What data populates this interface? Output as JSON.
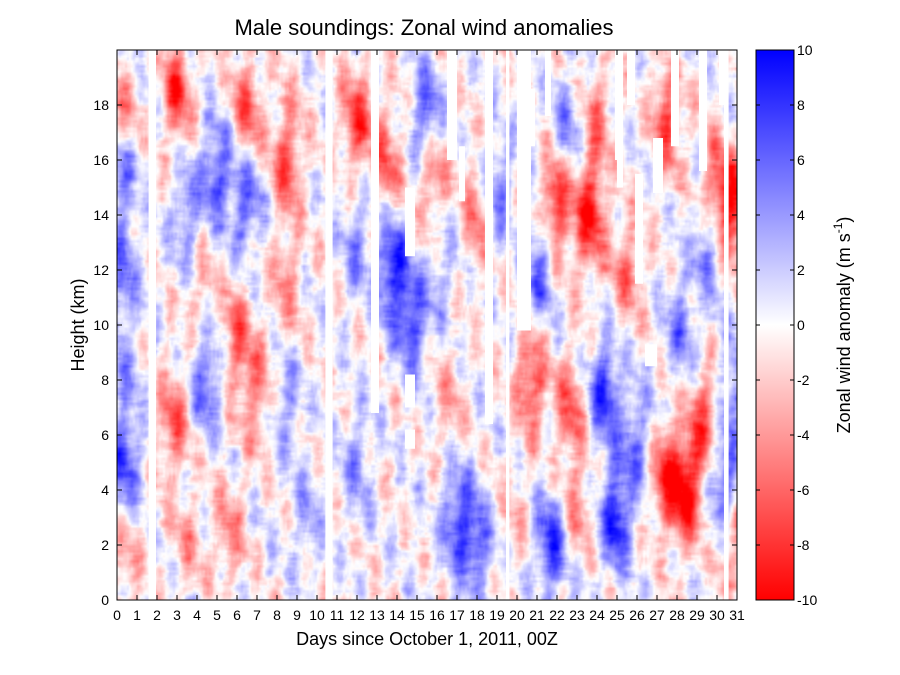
{
  "chart_data": {
    "type": "heatmap",
    "title": "Male soundings:  Zonal wind anomalies",
    "xlabel": "Days since October 1, 2011, 00Z",
    "ylabel": "Height (km)",
    "xlim": [
      0,
      31
    ],
    "ylim": [
      0,
      20
    ],
    "x_ticks": [
      0,
      1,
      2,
      3,
      4,
      5,
      6,
      7,
      8,
      9,
      10,
      11,
      12,
      13,
      14,
      15,
      16,
      17,
      18,
      19,
      20,
      21,
      22,
      23,
      24,
      25,
      26,
      27,
      28,
      29,
      30,
      31
    ],
    "y_ticks": [
      0,
      2,
      4,
      6,
      8,
      10,
      12,
      14,
      16,
      18
    ],
    "colorbar": {
      "label_main": "Zonal wind anomaly (m s",
      "label_sup": "-1",
      "label_end": ")",
      "range": [
        -10,
        10
      ],
      "ticks": [
        10,
        8,
        6,
        4,
        2,
        0,
        -2,
        -4,
        -6,
        -8,
        -10
      ],
      "colormap": [
        "#ff0000",
        "#ffffff",
        "#0000ff"
      ]
    },
    "gaps_full_column_days": [
      [
        1.58,
        1.95
      ],
      [
        10.42,
        10.78
      ],
      [
        19.45,
        19.62
      ],
      [
        30.35,
        30.58
      ]
    ],
    "gaps_partial": [
      {
        "x": [
          12.7,
          13.1
        ],
        "y": [
          6.8,
          20
        ]
      },
      {
        "x": [
          14.4,
          14.9
        ],
        "y": [
          7.0,
          8.2
        ]
      },
      {
        "x": [
          14.4,
          14.9
        ],
        "y": [
          5.5,
          6.2
        ]
      },
      {
        "x": [
          14.4,
          14.9
        ],
        "y": [
          12.5,
          15
        ]
      },
      {
        "x": [
          16.5,
          17.0
        ],
        "y": [
          16.0,
          20
        ]
      },
      {
        "x": [
          17.1,
          17.4
        ],
        "y": [
          14.5,
          16.5
        ]
      },
      {
        "x": [
          18.4,
          18.8
        ],
        "y": [
          6.4,
          20
        ]
      },
      {
        "x": [
          20.0,
          20.7
        ],
        "y": [
          9.8,
          20
        ]
      },
      {
        "x": [
          20.7,
          20.9
        ],
        "y": [
          16.5,
          18.6
        ]
      },
      {
        "x": [
          21.4,
          21.7
        ],
        "y": [
          17.6,
          20
        ]
      },
      {
        "x": [
          24.9,
          25.3
        ],
        "y": [
          16.0,
          20
        ]
      },
      {
        "x": [
          25.5,
          25.9
        ],
        "y": [
          18.0,
          20
        ]
      },
      {
        "x": [
          25.0,
          25.3
        ],
        "y": [
          15.0,
          16.0
        ]
      },
      {
        "x": [
          26.4,
          27.0
        ],
        "y": [
          8.5,
          9.3
        ]
      },
      {
        "x": [
          26.8,
          27.3
        ],
        "y": [
          14.8,
          16.8
        ]
      },
      {
        "x": [
          27.7,
          28.1
        ],
        "y": [
          16.5,
          20
        ]
      },
      {
        "x": [
          29.1,
          29.5
        ],
        "y": [
          15.6,
          20
        ]
      },
      {
        "x": [
          30.1,
          30.4
        ],
        "y": [
          18.0,
          20
        ]
      },
      {
        "x": [
          25.9,
          26.3
        ],
        "y": [
          11.5,
          15.5
        ]
      }
    ],
    "anomaly_features": [
      {
        "x": 0.4,
        "y": 1.5,
        "v": -3
      },
      {
        "x": 0.4,
        "y": 5.0,
        "v": 7
      },
      {
        "x": 0.4,
        "y": 8.5,
        "v": 3
      },
      {
        "x": 0.3,
        "y": 12.0,
        "v": 5
      },
      {
        "x": 0.3,
        "y": 16.0,
        "v": 8
      },
      {
        "x": 0.3,
        "y": 17.3,
        "v": -7
      },
      {
        "x": 2.8,
        "y": 6.5,
        "v": -6
      },
      {
        "x": 3.5,
        "y": 2.0,
        "v": -3
      },
      {
        "x": 3.5,
        "y": 14.0,
        "v": 5
      },
      {
        "x": 4.5,
        "y": 8.0,
        "v": 6
      },
      {
        "x": 4.2,
        "y": 11.5,
        "v": -3
      },
      {
        "x": 5.6,
        "y": 2.5,
        "v": -4
      },
      {
        "x": 6.0,
        "y": 9.5,
        "v": -6
      },
      {
        "x": 7.0,
        "y": 7.5,
        "v": -5
      },
      {
        "x": 6.5,
        "y": 14.5,
        "v": 6
      },
      {
        "x": 5.0,
        "y": 15.5,
        "v": 7
      },
      {
        "x": 6.5,
        "y": 17.8,
        "v": -6
      },
      {
        "x": 8.5,
        "y": 16.0,
        "v": -7
      },
      {
        "x": 8.5,
        "y": 11.5,
        "v": -4
      },
      {
        "x": 8.5,
        "y": 7.0,
        "v": 4
      },
      {
        "x": 9.5,
        "y": 3.0,
        "v": 3
      },
      {
        "x": 3.0,
        "y": 18.5,
        "v": -7
      },
      {
        "x": 12.0,
        "y": 17.5,
        "v": -7
      },
      {
        "x": 12.0,
        "y": 13.0,
        "v": 4
      },
      {
        "x": 12.0,
        "y": 5.0,
        "v": 4
      },
      {
        "x": 13.8,
        "y": 12.0,
        "v": 9
      },
      {
        "x": 14.8,
        "y": 10.0,
        "v": 7
      },
      {
        "x": 13.5,
        "y": 16.0,
        "v": -6
      },
      {
        "x": 15.5,
        "y": 17.5,
        "v": 7
      },
      {
        "x": 15.8,
        "y": 15.5,
        "v": -6
      },
      {
        "x": 16.3,
        "y": 12.0,
        "v": 3
      },
      {
        "x": 16.6,
        "y": 7.0,
        "v": -3
      },
      {
        "x": 17.0,
        "y": 3.0,
        "v": 7
      },
      {
        "x": 18.0,
        "y": 2.0,
        "v": 6
      },
      {
        "x": 19.9,
        "y": 3.0,
        "v": -2
      },
      {
        "x": 20.7,
        "y": 8.0,
        "v": -7
      },
      {
        "x": 21.1,
        "y": 12.0,
        "v": 6
      },
      {
        "x": 21.7,
        "y": 2.0,
        "v": 8
      },
      {
        "x": 22.0,
        "y": 14.5,
        "v": -9
      },
      {
        "x": 22.6,
        "y": 7.0,
        "v": -6
      },
      {
        "x": 23.0,
        "y": 3.5,
        "v": -4
      },
      {
        "x": 23.6,
        "y": 14.0,
        "v": -9
      },
      {
        "x": 24.4,
        "y": 7.5,
        "v": 8
      },
      {
        "x": 25.0,
        "y": 3.0,
        "v": 9
      },
      {
        "x": 25.5,
        "y": 12.0,
        "v": -5
      },
      {
        "x": 26.0,
        "y": 6.0,
        "v": 5
      },
      {
        "x": 27.5,
        "y": 4.5,
        "v": -8
      },
      {
        "x": 28.5,
        "y": 4.0,
        "v": -9
      },
      {
        "x": 28.2,
        "y": 10.0,
        "v": 5
      },
      {
        "x": 29.4,
        "y": 6.5,
        "v": -7
      },
      {
        "x": 29.6,
        "y": 13.0,
        "v": 5
      },
      {
        "x": 30.0,
        "y": 15.0,
        "v": -7
      },
      {
        "x": 30.3,
        "y": 4.5,
        "v": 7
      },
      {
        "x": 24.0,
        "y": 17.5,
        "v": -5
      },
      {
        "x": 27.5,
        "y": 17.5,
        "v": -7
      },
      {
        "x": 22.5,
        "y": 17.0,
        "v": 5
      },
      {
        "x": 19.0,
        "y": 15.0,
        "v": 5
      },
      {
        "x": 18.0,
        "y": 14.0,
        "v": -5
      },
      {
        "x": 30.9,
        "y": 14.0,
        "v": -8
      },
      {
        "x": 30.9,
        "y": 8.0,
        "v": 5
      },
      {
        "x": 30.9,
        "y": 2.0,
        "v": -4
      }
    ]
  }
}
